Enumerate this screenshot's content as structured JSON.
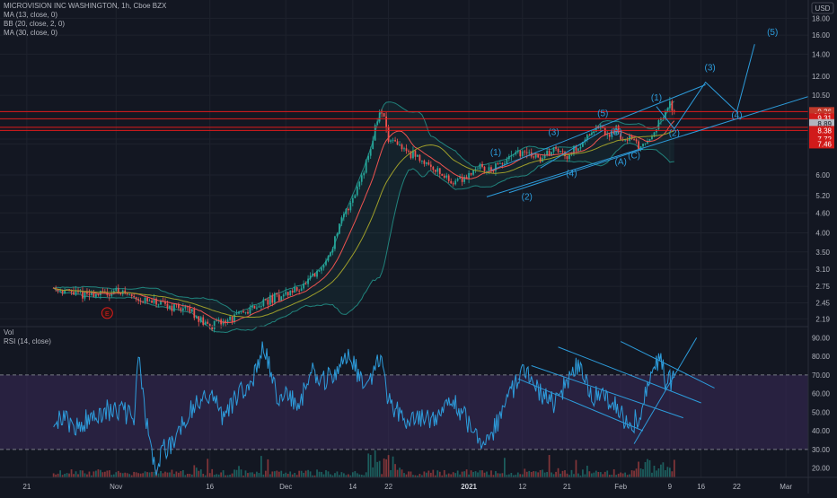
{
  "header": {
    "symbol_line": "MICROVISION INC WASHINGTON, 1h, Cboe BZX",
    "indicators": [
      "MA (13, close, 0)",
      "BB (20, close, 2, 0)",
      "MA (30, close, 0)"
    ],
    "currency": "USD"
  },
  "colors": {
    "background": "#131722",
    "up": "#26a69a",
    "down": "#ef5350",
    "rsi_line": "#2d9cdb",
    "rsi_band": "#3a2a5a",
    "bb": "#26a69a",
    "ma13": "#ef5350",
    "ma30": "#9e9e2a",
    "drawing": "#2d9cdb",
    "hline": "#e01b1b",
    "axis_text": "#b2b5be"
  },
  "chart_data": {
    "type": "candlestick",
    "price": {
      "scale": "log",
      "ylim": [
        2.1,
        18.5
      ],
      "y_ticks": [
        "18.00",
        "16.00",
        "14.00",
        "12.00",
        "10.50",
        "9.36",
        "8.89",
        "7.72",
        "7.46",
        "6.00",
        "5.20",
        "4.60",
        "4.00",
        "3.50",
        "3.10",
        "2.75",
        "2.45",
        "2.19"
      ],
      "y_tick_values": [
        18.0,
        16.0,
        14.0,
        12.0,
        10.5,
        9.36,
        8.89,
        7.72,
        7.46,
        6.0,
        5.2,
        4.6,
        4.0,
        3.5,
        3.1,
        2.75,
        2.45,
        2.19
      ],
      "overlay_values": [
        {
          "label": "9.36",
          "value": 9.36,
          "style": "last"
        },
        {
          "label": "01:39",
          "value": 9.1,
          "style": "last"
        },
        {
          "label": "9.31",
          "value": 8.95,
          "style": "red"
        },
        {
          "label": "8.89",
          "value": 8.6,
          "style": "grey"
        },
        {
          "label": "8.38",
          "value": 8.2,
          "style": "red"
        },
        {
          "label": "7.72",
          "value": 7.72,
          "style": "red"
        },
        {
          "label": "7.46",
          "value": 7.46,
          "style": "red"
        }
      ],
      "horizontal_lines": [
        9.36,
        8.9,
        8.38,
        8.2
      ],
      "waypoints_day_price": [
        [
          0,
          2.72
        ],
        [
          6,
          2.6
        ],
        [
          11,
          2.6
        ],
        [
          14,
          2.68
        ],
        [
          18,
          2.55
        ],
        [
          22,
          2.45
        ],
        [
          25,
          2.4
        ],
        [
          28,
          2.38
        ],
        [
          31,
          2.3
        ],
        [
          34,
          2.1
        ],
        [
          36,
          2.1
        ],
        [
          40,
          2.2
        ],
        [
          44,
          2.35
        ],
        [
          48,
          2.5
        ],
        [
          52,
          2.6
        ],
        [
          56,
          2.75
        ],
        [
          60,
          3.1
        ],
        [
          62,
          3.5
        ],
        [
          64,
          4.2
        ],
        [
          66,
          4.8
        ],
        [
          68,
          5.5
        ],
        [
          70,
          6.6
        ],
        [
          71,
          7.2
        ],
        [
          72,
          8.4
        ],
        [
          73,
          9.3
        ],
        [
          74,
          9.0
        ],
        [
          75,
          7.6
        ],
        [
          77,
          7.4
        ],
        [
          80,
          7.0
        ],
        [
          83,
          6.6
        ],
        [
          86,
          6.2
        ],
        [
          89,
          5.7
        ],
        [
          92,
          5.9
        ],
        [
          95,
          6.4
        ],
        [
          97,
          6.2
        ],
        [
          100,
          6.4
        ],
        [
          103,
          6.9
        ],
        [
          106,
          7.0
        ],
        [
          109,
          6.7
        ],
        [
          112,
          7.2
        ],
        [
          115,
          6.9
        ],
        [
          118,
          7.4
        ],
        [
          120,
          8.1
        ],
        [
          122,
          8.4
        ],
        [
          124,
          7.9
        ],
        [
          126,
          8.3
        ],
        [
          127,
          7.7
        ],
        [
          129,
          7.8
        ],
        [
          131,
          7.3
        ],
        [
          133,
          7.6
        ],
        [
          135,
          8.4
        ],
        [
          137,
          9.2
        ],
        [
          138,
          9.8
        ],
        [
          139,
          9.4
        ]
      ]
    },
    "rsi": {
      "label": "RSI (14, close)",
      "ylim": [
        15,
        95
      ],
      "y_ticks": [
        "90.00",
        "80.00",
        "70.00",
        "60.00",
        "50.00",
        "40.00",
        "30.00",
        "20.00"
      ],
      "y_tick_values": [
        90,
        80,
        70,
        60,
        50,
        40,
        30,
        20
      ],
      "upper_band": 70,
      "lower_band": 30,
      "waypoints_day_value": [
        [
          0,
          48
        ],
        [
          5,
          42
        ],
        [
          10,
          50
        ],
        [
          15,
          52
        ],
        [
          18,
          45
        ],
        [
          19,
          80
        ],
        [
          20,
          60
        ],
        [
          22,
          25
        ],
        [
          23,
          16
        ],
        [
          24,
          28
        ],
        [
          27,
          35
        ],
        [
          30,
          50
        ],
        [
          35,
          60
        ],
        [
          38,
          48
        ],
        [
          45,
          70
        ],
        [
          47,
          85
        ],
        [
          50,
          60
        ],
        [
          55,
          55
        ],
        [
          58,
          72
        ],
        [
          60,
          65
        ],
        [
          64,
          75
        ],
        [
          66,
          80
        ],
        [
          68,
          72
        ],
        [
          70,
          60
        ],
        [
          72,
          75
        ],
        [
          73,
          80
        ],
        [
          75,
          55
        ],
        [
          80,
          45
        ],
        [
          86,
          48
        ],
        [
          90,
          55
        ],
        [
          95,
          35
        ],
        [
          98,
          38
        ],
        [
          102,
          58
        ],
        [
          106,
          75
        ],
        [
          108,
          62
        ],
        [
          112,
          55
        ],
        [
          116,
          70
        ],
        [
          118,
          77
        ],
        [
          120,
          58
        ],
        [
          123,
          60
        ],
        [
          126,
          52
        ],
        [
          129,
          42
        ],
        [
          131,
          48
        ],
        [
          134,
          72
        ],
        [
          136,
          80
        ],
        [
          137,
          66
        ],
        [
          139,
          68
        ]
      ]
    },
    "volume": {
      "label": "Vol"
    },
    "x_ticks": [
      "21",
      "Nov",
      "16",
      "Dec",
      "14",
      "22",
      "2021",
      "12",
      "21",
      "Feb",
      "9",
      "16",
      "22",
      "Mar"
    ],
    "x_tick_days": [
      -6,
      14,
      35,
      52,
      67,
      75,
      93,
      105,
      115,
      127,
      138,
      145,
      153,
      164
    ],
    "x_range_days": [
      -12,
      169
    ],
    "elliott_labels": [
      {
        "text": "(1)",
        "day": 99,
        "price": 6.9
      },
      {
        "text": "(2)",
        "day": 106,
        "price": 5.05
      },
      {
        "text": "(3)",
        "day": 112,
        "price": 7.95
      },
      {
        "text": "(4)",
        "day": 116,
        "price": 5.95
      },
      {
        "text": "(5)",
        "day": 123,
        "price": 9.05
      },
      {
        "text": "(A)",
        "day": 127,
        "price": 6.45
      },
      {
        "text": "(B)",
        "day": 126,
        "price": 7.95
      },
      {
        "text": "(C)",
        "day": 130,
        "price": 6.75
      },
      {
        "text": "(1)",
        "day": 135,
        "price": 10.1
      },
      {
        "text": "(2)",
        "day": 139,
        "price": 7.9
      },
      {
        "text": "(3)",
        "day": 147,
        "price": 12.5
      },
      {
        "text": "(4)",
        "day": 153,
        "price": 8.95
      },
      {
        "text": "(5)",
        "day": 161,
        "price": 16.0
      }
    ],
    "earnings_marker": {
      "text": "E",
      "day": 12,
      "price": 2.28
    }
  }
}
